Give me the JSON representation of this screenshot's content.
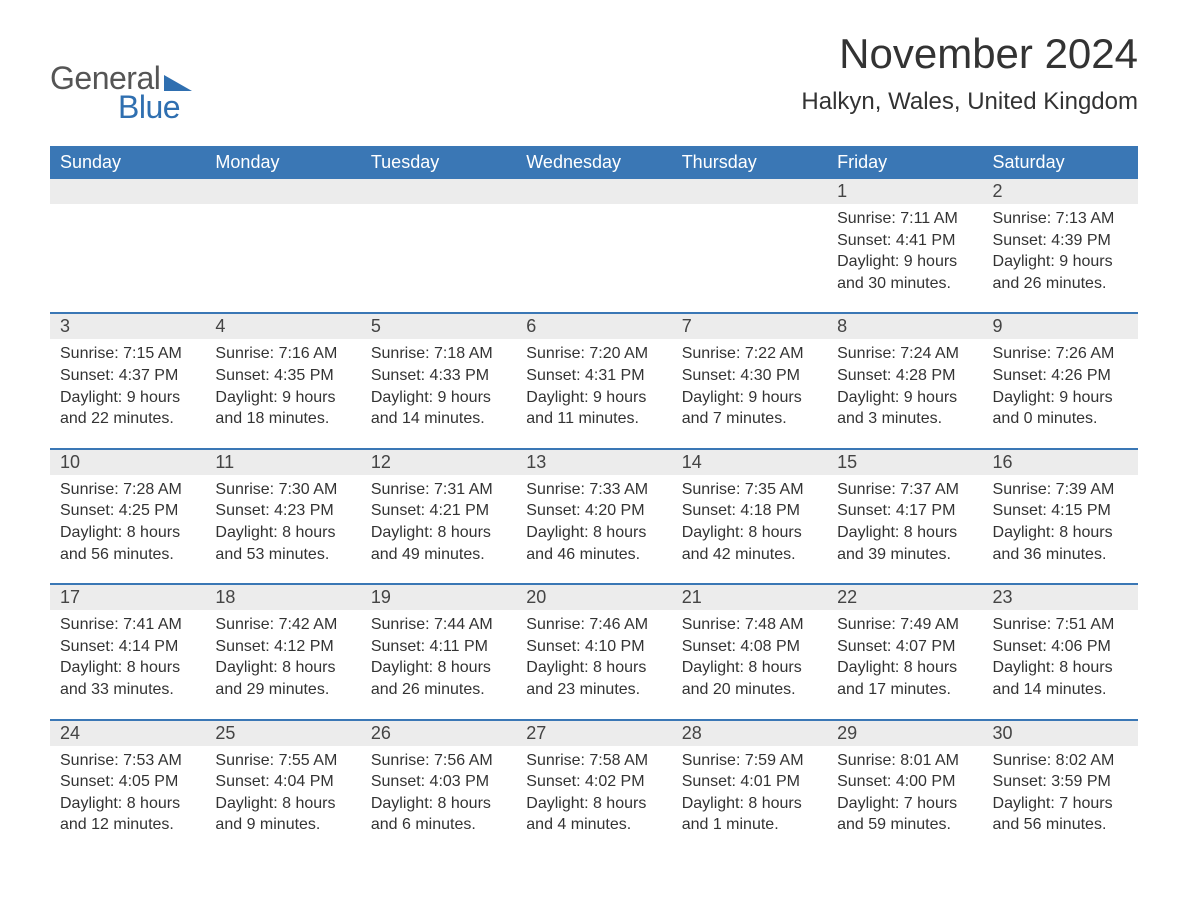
{
  "logo": {
    "text1": "General",
    "text2": "Blue",
    "accent_color": "#2f6fb0"
  },
  "title": "November 2024",
  "location": "Halkyn, Wales, United Kingdom",
  "header_bg": "#3a77b5",
  "header_fg": "#ffffff",
  "daynum_bg": "#ececec",
  "border_color": "#3a77b5",
  "text_color": "#333333",
  "columns": [
    "Sunday",
    "Monday",
    "Tuesday",
    "Wednesday",
    "Thursday",
    "Friday",
    "Saturday"
  ],
  "weeks": [
    [
      null,
      null,
      null,
      null,
      null,
      {
        "n": 1,
        "sr": "7:11 AM",
        "ss": "4:41 PM",
        "dl": "9 hours and 30 minutes."
      },
      {
        "n": 2,
        "sr": "7:13 AM",
        "ss": "4:39 PM",
        "dl": "9 hours and 26 minutes."
      }
    ],
    [
      {
        "n": 3,
        "sr": "7:15 AM",
        "ss": "4:37 PM",
        "dl": "9 hours and 22 minutes."
      },
      {
        "n": 4,
        "sr": "7:16 AM",
        "ss": "4:35 PM",
        "dl": "9 hours and 18 minutes."
      },
      {
        "n": 5,
        "sr": "7:18 AM",
        "ss": "4:33 PM",
        "dl": "9 hours and 14 minutes."
      },
      {
        "n": 6,
        "sr": "7:20 AM",
        "ss": "4:31 PM",
        "dl": "9 hours and 11 minutes."
      },
      {
        "n": 7,
        "sr": "7:22 AM",
        "ss": "4:30 PM",
        "dl": "9 hours and 7 minutes."
      },
      {
        "n": 8,
        "sr": "7:24 AM",
        "ss": "4:28 PM",
        "dl": "9 hours and 3 minutes."
      },
      {
        "n": 9,
        "sr": "7:26 AM",
        "ss": "4:26 PM",
        "dl": "9 hours and 0 minutes."
      }
    ],
    [
      {
        "n": 10,
        "sr": "7:28 AM",
        "ss": "4:25 PM",
        "dl": "8 hours and 56 minutes."
      },
      {
        "n": 11,
        "sr": "7:30 AM",
        "ss": "4:23 PM",
        "dl": "8 hours and 53 minutes."
      },
      {
        "n": 12,
        "sr": "7:31 AM",
        "ss": "4:21 PM",
        "dl": "8 hours and 49 minutes."
      },
      {
        "n": 13,
        "sr": "7:33 AM",
        "ss": "4:20 PM",
        "dl": "8 hours and 46 minutes."
      },
      {
        "n": 14,
        "sr": "7:35 AM",
        "ss": "4:18 PM",
        "dl": "8 hours and 42 minutes."
      },
      {
        "n": 15,
        "sr": "7:37 AM",
        "ss": "4:17 PM",
        "dl": "8 hours and 39 minutes."
      },
      {
        "n": 16,
        "sr": "7:39 AM",
        "ss": "4:15 PM",
        "dl": "8 hours and 36 minutes."
      }
    ],
    [
      {
        "n": 17,
        "sr": "7:41 AM",
        "ss": "4:14 PM",
        "dl": "8 hours and 33 minutes."
      },
      {
        "n": 18,
        "sr": "7:42 AM",
        "ss": "4:12 PM",
        "dl": "8 hours and 29 minutes."
      },
      {
        "n": 19,
        "sr": "7:44 AM",
        "ss": "4:11 PM",
        "dl": "8 hours and 26 minutes."
      },
      {
        "n": 20,
        "sr": "7:46 AM",
        "ss": "4:10 PM",
        "dl": "8 hours and 23 minutes."
      },
      {
        "n": 21,
        "sr": "7:48 AM",
        "ss": "4:08 PM",
        "dl": "8 hours and 20 minutes."
      },
      {
        "n": 22,
        "sr": "7:49 AM",
        "ss": "4:07 PM",
        "dl": "8 hours and 17 minutes."
      },
      {
        "n": 23,
        "sr": "7:51 AM",
        "ss": "4:06 PM",
        "dl": "8 hours and 14 minutes."
      }
    ],
    [
      {
        "n": 24,
        "sr": "7:53 AM",
        "ss": "4:05 PM",
        "dl": "8 hours and 12 minutes."
      },
      {
        "n": 25,
        "sr": "7:55 AM",
        "ss": "4:04 PM",
        "dl": "8 hours and 9 minutes."
      },
      {
        "n": 26,
        "sr": "7:56 AM",
        "ss": "4:03 PM",
        "dl": "8 hours and 6 minutes."
      },
      {
        "n": 27,
        "sr": "7:58 AM",
        "ss": "4:02 PM",
        "dl": "8 hours and 4 minutes."
      },
      {
        "n": 28,
        "sr": "7:59 AM",
        "ss": "4:01 PM",
        "dl": "8 hours and 1 minute."
      },
      {
        "n": 29,
        "sr": "8:01 AM",
        "ss": "4:00 PM",
        "dl": "7 hours and 59 minutes."
      },
      {
        "n": 30,
        "sr": "8:02 AM",
        "ss": "3:59 PM",
        "dl": "7 hours and 56 minutes."
      }
    ]
  ],
  "labels": {
    "sunrise": "Sunrise:",
    "sunset": "Sunset:",
    "daylight": "Daylight:"
  }
}
